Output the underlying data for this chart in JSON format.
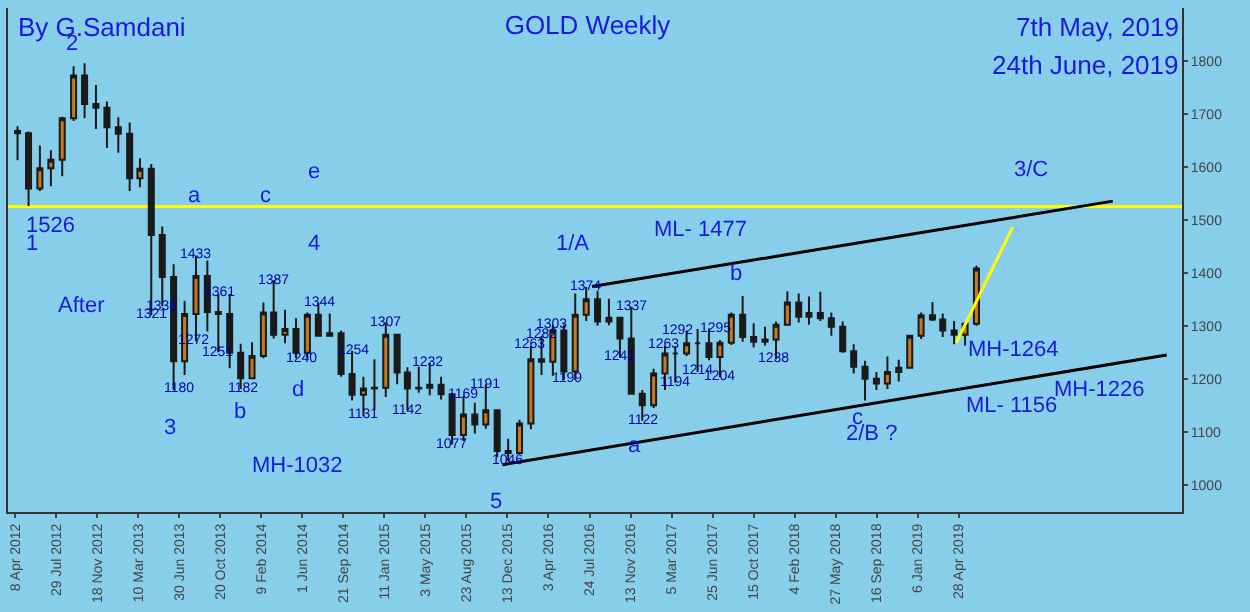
{
  "chart_data": {
    "type": "candlestick",
    "title": "GOLD Weekly",
    "x": [
      "2012-04-15",
      "2012-05-15",
      "2012-06-15",
      "2012-07-15",
      "2012-08-15",
      "2012-09-15",
      "2012-10-15",
      "2012-11-15",
      "2012-12-15",
      "2013-01-15",
      "2013-02-15",
      "2013-03-15",
      "2013-04-15",
      "2013-05-15",
      "2013-06-15",
      "2013-07-15",
      "2013-08-15",
      "2013-09-15",
      "2013-10-15",
      "2013-11-15",
      "2013-12-15",
      "2014-01-15",
      "2014-02-15",
      "2014-03-15",
      "2014-04-15",
      "2014-05-15",
      "2014-06-15",
      "2014-07-15",
      "2014-08-15",
      "2014-09-15",
      "2014-10-15",
      "2014-11-15",
      "2014-12-15",
      "2015-01-15",
      "2015-02-15",
      "2015-03-15",
      "2015-04-15",
      "2015-05-15",
      "2015-06-15",
      "2015-07-15",
      "2015-08-15",
      "2015-09-15",
      "2015-10-15",
      "2015-11-15",
      "2015-12-15",
      "2016-01-15",
      "2016-02-15",
      "2016-03-15",
      "2016-04-15",
      "2016-05-15",
      "2016-06-15",
      "2016-07-15",
      "2016-08-15",
      "2016-09-15",
      "2016-10-15",
      "2016-11-15",
      "2016-12-15",
      "2017-01-15",
      "2017-02-15",
      "2017-03-15",
      "2017-04-15",
      "2017-05-15",
      "2017-06-15",
      "2017-07-15",
      "2017-08-15",
      "2017-09-15",
      "2017-10-15",
      "2017-11-15",
      "2017-12-15",
      "2018-01-15",
      "2018-02-15",
      "2018-03-15",
      "2018-04-15",
      "2018-05-15",
      "2018-06-15",
      "2018-07-15",
      "2018-08-15",
      "2018-09-15",
      "2018-10-15",
      "2018-11-15",
      "2018-12-15",
      "2019-01-15",
      "2019-02-15",
      "2019-03-15",
      "2019-04-15",
      "2019-05-15",
      "2019-06-15"
    ],
    "ohlc": [
      [
        1668,
        1677,
        1613,
        1664
      ],
      [
        1664,
        1667,
        1527,
        1560
      ],
      [
        1560,
        1641,
        1555,
        1598
      ],
      [
        1598,
        1632,
        1564,
        1614
      ],
      [
        1614,
        1695,
        1583,
        1692
      ],
      [
        1692,
        1790,
        1687,
        1773
      ],
      [
        1773,
        1796,
        1692,
        1719
      ],
      [
        1719,
        1755,
        1672,
        1712
      ],
      [
        1712,
        1724,
        1636,
        1675
      ],
      [
        1675,
        1694,
        1627,
        1663
      ],
      [
        1663,
        1684,
        1555,
        1579
      ],
      [
        1579,
        1617,
        1562,
        1597
      ],
      [
        1597,
        1606,
        1321,
        1472
      ],
      [
        1472,
        1488,
        1338,
        1393
      ],
      [
        1393,
        1417,
        1180,
        1234
      ],
      [
        1234,
        1348,
        1208,
        1323
      ],
      [
        1323,
        1433,
        1272,
        1395
      ],
      [
        1395,
        1424,
        1290,
        1327
      ],
      [
        1327,
        1361,
        1251,
        1323
      ],
      [
        1323,
        1361,
        1221,
        1250
      ],
      [
        1250,
        1267,
        1182,
        1202
      ],
      [
        1202,
        1270,
        1200,
        1244
      ],
      [
        1244,
        1345,
        1240,
        1326
      ],
      [
        1326,
        1387,
        1277,
        1284
      ],
      [
        1284,
        1331,
        1268,
        1295
      ],
      [
        1295,
        1315,
        1240,
        1250
      ],
      [
        1250,
        1326,
        1240,
        1322
      ],
      [
        1322,
        1344,
        1282,
        1282
      ],
      [
        1282,
        1324,
        1281,
        1287
      ],
      [
        1287,
        1292,
        1205,
        1210
      ],
      [
        1210,
        1254,
        1160,
        1171
      ],
      [
        1171,
        1205,
        1131,
        1183
      ],
      [
        1183,
        1238,
        1142,
        1184
      ],
      [
        1184,
        1307,
        1167,
        1284
      ],
      [
        1284,
        1284,
        1191,
        1213
      ],
      [
        1213,
        1223,
        1142,
        1183
      ],
      [
        1183,
        1224,
        1175,
        1184
      ],
      [
        1184,
        1232,
        1170,
        1190
      ],
      [
        1190,
        1205,
        1162,
        1172
      ],
      [
        1172,
        1175,
        1077,
        1095
      ],
      [
        1095,
        1169,
        1084,
        1134
      ],
      [
        1134,
        1156,
        1098,
        1115
      ],
      [
        1115,
        1191,
        1107,
        1142
      ],
      [
        1142,
        1142,
        1053,
        1065
      ],
      [
        1065,
        1088,
        1046,
        1061
      ],
      [
        1061,
        1124,
        1061,
        1117
      ],
      [
        1117,
        1263,
        1106,
        1238
      ],
      [
        1238,
        1282,
        1208,
        1233
      ],
      [
        1233,
        1303,
        1207,
        1292
      ],
      [
        1292,
        1303,
        1199,
        1215
      ],
      [
        1215,
        1362,
        1199,
        1322
      ],
      [
        1322,
        1374,
        1310,
        1351
      ],
      [
        1351,
        1367,
        1301,
        1309
      ],
      [
        1309,
        1352,
        1302,
        1316
      ],
      [
        1316,
        1318,
        1241,
        1277
      ],
      [
        1277,
        1337,
        1171,
        1173
      ],
      [
        1173,
        1180,
        1122,
        1151
      ],
      [
        1151,
        1220,
        1146,
        1211
      ],
      [
        1211,
        1263,
        1180,
        1249
      ],
      [
        1249,
        1263,
        1194,
        1249
      ],
      [
        1249,
        1292,
        1244,
        1268
      ],
      [
        1268,
        1295,
        1214,
        1268
      ],
      [
        1268,
        1296,
        1236,
        1242
      ],
      [
        1242,
        1274,
        1204,
        1269
      ],
      [
        1269,
        1326,
        1265,
        1322
      ],
      [
        1322,
        1357,
        1271,
        1280
      ],
      [
        1280,
        1306,
        1260,
        1271
      ],
      [
        1271,
        1299,
        1264,
        1275
      ],
      [
        1275,
        1309,
        1238,
        1303
      ],
      [
        1303,
        1366,
        1302,
        1345
      ],
      [
        1345,
        1362,
        1307,
        1318
      ],
      [
        1318,
        1356,
        1303,
        1325
      ],
      [
        1325,
        1365,
        1310,
        1315
      ],
      [
        1315,
        1326,
        1282,
        1299
      ],
      [
        1299,
        1309,
        1250,
        1253
      ],
      [
        1253,
        1266,
        1211,
        1224
      ],
      [
        1224,
        1235,
        1160,
        1201
      ],
      [
        1201,
        1214,
        1180,
        1192
      ],
      [
        1192,
        1243,
        1182,
        1214
      ],
      [
        1214,
        1237,
        1196,
        1222
      ],
      [
        1222,
        1284,
        1221,
        1282
      ],
      [
        1282,
        1326,
        1276,
        1321
      ],
      [
        1321,
        1346,
        1310,
        1313
      ],
      [
        1313,
        1324,
        1280,
        1292
      ],
      [
        1292,
        1310,
        1266,
        1284
      ],
      [
        1284,
        1307,
        1264,
        1305
      ],
      [
        1305,
        1414,
        1301,
        1409
      ]
    ],
    "series": [
      {
        "type": "line",
        "x": [
          "2016-07-31",
          "2020-06-21"
        ],
        "values": [
          1375,
          1536
        ],
        "color": "#000000"
      },
      {
        "type": "line",
        "x": [
          "2015-11-29",
          "2020-11-15"
        ],
        "values": [
          1039,
          1246
        ],
        "color": "#000000"
      },
      {
        "type": "line",
        "x": [
          "2019-04-21",
          "2019-09-22"
        ],
        "values": [
          1269,
          1487
        ],
        "color": "#ffff00"
      }
    ],
    "ref_lines": [
      {
        "axis": "y",
        "value": 1526,
        "color": "#ffff00"
      }
    ],
    "xlim": [
      "2012-03-20",
      "2020-12-27"
    ],
    "xticks": [
      {
        "value": "2012-04-08",
        "label": "8 Apr 2012"
      },
      {
        "value": "2012-07-29",
        "label": "29 Jul 2012"
      },
      {
        "value": "2012-11-18",
        "label": "18 Nov 2012"
      },
      {
        "value": "2013-03-10",
        "label": "10 Mar 2013"
      },
      {
        "value": "2013-06-30",
        "label": "30 Jun 2013"
      },
      {
        "value": "2013-10-20",
        "label": "20 Oct 2013"
      },
      {
        "value": "2014-02-09",
        "label": "9 Feb 2014"
      },
      {
        "value": "2014-06-01",
        "label": "1 Jun 2014"
      },
      {
        "value": "2014-09-21",
        "label": "21 Sep 2014"
      },
      {
        "value": "2015-01-11",
        "label": "11 Jan 2015"
      },
      {
        "value": "2015-05-03",
        "label": "3 May 2015"
      },
      {
        "value": "2015-08-23",
        "label": "23 Aug 2015"
      },
      {
        "value": "2015-12-13",
        "label": "13 Dec 2015"
      },
      {
        "value": "2016-04-03",
        "label": "3 Apr 2016"
      },
      {
        "value": "2016-07-24",
        "label": "24 Jul 2016"
      },
      {
        "value": "2016-11-13",
        "label": "13 Nov 2016"
      },
      {
        "value": "2017-03-05",
        "label": "5 Mar 2017"
      },
      {
        "value": "2017-06-25",
        "label": "25 Jun 2017"
      },
      {
        "value": "2017-10-15",
        "label": "15 Oct 2017"
      },
      {
        "value": "2018-02-04",
        "label": "4 Feb 2018"
      },
      {
        "value": "2018-05-27",
        "label": "27 May 2018"
      },
      {
        "value": "2018-09-16",
        "label": "16 Sep 2018"
      },
      {
        "value": "2019-01-06",
        "label": "6 Jan 2019"
      },
      {
        "value": "2019-04-28",
        "label": "28 Apr 2019"
      }
    ],
    "ylim": [
      950,
      1900
    ],
    "yticks": [
      1000,
      1100,
      1200,
      1300,
      1400,
      1500,
      1600,
      1700,
      1800
    ],
    "grid": false,
    "annotations": [
      "By G.Samdani",
      "7th May, 2019",
      "24th June, 2019",
      "2",
      "1",
      "1526",
      "3",
      "4",
      "5",
      "1/A",
      "2/B ?",
      "3/C",
      "After",
      "a",
      "b",
      "c",
      "d",
      "e",
      "a",
      "c",
      "b",
      "ML- 1477",
      "MH-1264",
      "MH-1226",
      "ML- 1156",
      "MH-1032",
      {
        "text": "1433",
        "x": "2013-08-15",
        "y": 1433
      },
      {
        "text": "1321",
        "x": "2013-04-15",
        "y": 1321
      },
      {
        "text": "1338",
        "x": "2013-05-15",
        "y": 1338
      },
      {
        "text": "1180",
        "x": "2013-06-30",
        "y": 1180
      },
      {
        "text": "1361",
        "x": "2013-10-20",
        "y": 1361
      },
      {
        "text": "1272",
        "x": "2013-08-11",
        "y": 1272
      },
      {
        "text": "1251",
        "x": "2013-10-15",
        "y": 1251
      },
      {
        "text": "1182",
        "x": "2013-12-22",
        "y": 1182
      },
      {
        "text": "1387",
        "x": "2014-03-16",
        "y": 1387
      },
      {
        "text": "1240",
        "x": "2014-06-01",
        "y": 1240
      },
      {
        "text": "1344",
        "x": "2014-07-20",
        "y": 1344
      },
      {
        "text": "1254",
        "x": "2014-10-19",
        "y": 1254
      },
      {
        "text": "1131",
        "x": "2014-11-15",
        "y": 1131
      },
      {
        "text": "1307",
        "x": "2015-01-15",
        "y": 1307
      },
      {
        "text": "1142",
        "x": "2015-03-15",
        "y": 1142
      },
      {
        "text": "1232",
        "x": "2015-05-10",
        "y": 1232
      },
      {
        "text": "1077",
        "x": "2015-07-15",
        "y": 1077
      },
      {
        "text": "1169",
        "x": "2015-08-15",
        "y": 1169
      },
      {
        "text": "1191",
        "x": "2015-10-15",
        "y": 1191
      },
      {
        "text": "1046",
        "x": "2015-12-15",
        "y": 1046
      },
      {
        "text": "1263",
        "x": "2016-02-15",
        "y": 1263
      },
      {
        "text": "1282",
        "x": "2016-03-15",
        "y": 1282
      },
      {
        "text": "1303",
        "x": "2016-04-15",
        "y": 1303
      },
      {
        "text": "1199",
        "x": "2016-05-22",
        "y": 1199
      },
      {
        "text": "1374",
        "x": "2016-07-15",
        "y": 1374
      },
      {
        "text": "1241",
        "x": "2016-10-15",
        "y": 1241
      },
      {
        "text": "1337",
        "x": "2016-11-15",
        "y": 1337
      },
      {
        "text": "1122",
        "x": "2016-12-15",
        "y": 1122
      },
      {
        "text": "1263",
        "x": "2017-02-15",
        "y": 1263
      },
      {
        "text": "1194",
        "x": "2017-03-15",
        "y": 1194
      },
      {
        "text": "1292",
        "x": "2017-03-20",
        "y": 1292
      },
      {
        "text": "1214",
        "x": "2017-05-15",
        "y": 1214
      },
      {
        "text": "1295",
        "x": "2017-07-05",
        "y": 1295
      },
      {
        "text": "1204",
        "x": "2017-07-15",
        "y": 1204
      },
      {
        "text": "1238",
        "x": "2017-12-10",
        "y": 1238
      }
    ]
  }
}
